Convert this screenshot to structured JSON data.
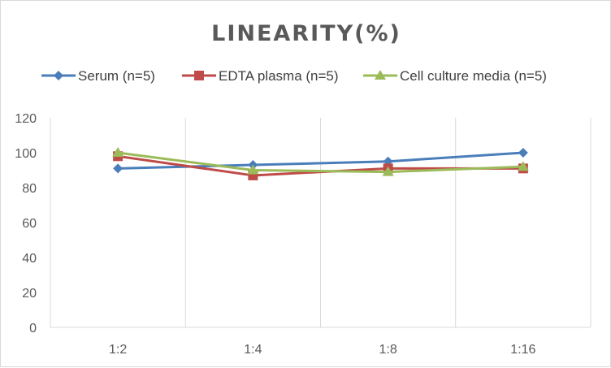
{
  "chart_data": {
    "type": "line",
    "title": "LINEARITY(%)",
    "categories": [
      "1:2",
      "1:4",
      "1:8",
      "1:16"
    ],
    "ylim": [
      0,
      120
    ],
    "yticks": [
      0,
      20,
      40,
      60,
      80,
      100,
      120
    ],
    "grid": "vertical category gridlines",
    "legend_position": "top",
    "series": [
      {
        "name": "Serum (n=5)",
        "color": "#4a7ebb",
        "marker": "diamond",
        "values": [
          91,
          93,
          95,
          100
        ]
      },
      {
        "name": "EDTA plasma (n=5)",
        "color": "#be4b48",
        "marker": "square",
        "values": [
          98,
          87,
          91,
          91
        ]
      },
      {
        "name": "Cell culture media (n=5)",
        "color": "#9bbb59",
        "marker": "triangle",
        "values": [
          100,
          90,
          89,
          92
        ]
      }
    ]
  }
}
